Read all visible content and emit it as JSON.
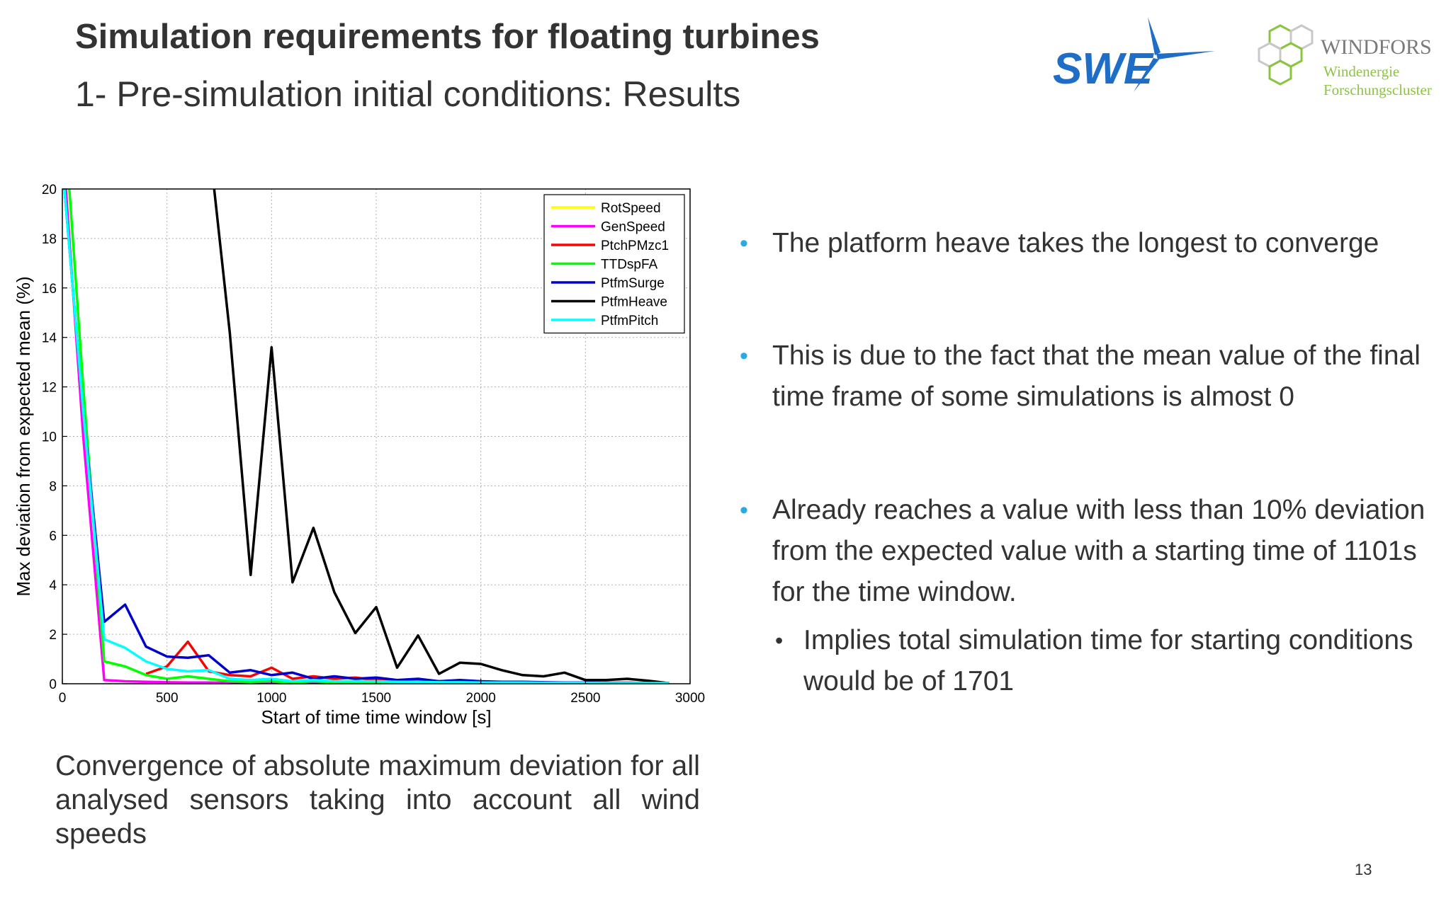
{
  "slide": {
    "title": "Simulation requirements for floating turbines",
    "subtitle": "1- Pre-simulation initial conditions: Results",
    "page_number": "13",
    "caption": "Convergence of absolute maximum deviation for all analysed sensors taking into account all wind speeds"
  },
  "logos": {
    "swe": {
      "text": "SWE",
      "color": "#1e6ec8"
    },
    "windfors": {
      "name": "WINDFORS",
      "line1": "Windenergie",
      "line2": "Forschungscluster",
      "color": "#8bc53f",
      "name_color": "#7a7a7a"
    }
  },
  "bullets": [
    {
      "text": "The platform heave takes the longest to converge"
    },
    {
      "text": "This is due to the fact that the mean value of the final time frame of some simulations is almost 0"
    },
    {
      "text": "Already reaches a value with less than 10% deviation from the expected value with a starting time of 1101s for the time window.",
      "sub": "Implies total simulation time for starting conditions would be of 1701"
    }
  ],
  "chart_data": {
    "type": "line",
    "xlabel": "Start of time time window [s]",
    "ylabel": "Max deviation from expected mean (%)",
    "xlim": [
      0,
      3000
    ],
    "ylim": [
      0,
      20
    ],
    "xticks": [
      0,
      500,
      1000,
      1500,
      2000,
      2500,
      3000
    ],
    "yticks": [
      0,
      2,
      4,
      6,
      8,
      10,
      12,
      14,
      16,
      18,
      20
    ],
    "grid": true,
    "legend_position": "top-right",
    "x": [
      0,
      100,
      200,
      300,
      400,
      500,
      600,
      700,
      800,
      900,
      1000,
      1100,
      1200,
      1300,
      1400,
      1500,
      1600,
      1700,
      1800,
      1900,
      2000,
      2100,
      2200,
      2300,
      2400,
      2500,
      2600,
      2700,
      2800,
      2900
    ],
    "series": [
      {
        "name": "RotSpeed",
        "color": "#ffff00",
        "values": [
          22,
          10,
          0.15,
          0.1,
          0.08,
          0.06,
          0.05,
          0.05,
          0.04,
          0.04,
          0.04,
          0.03,
          0.03,
          0.03,
          0.03,
          0.03,
          0.03,
          0.02,
          0.02,
          0.02,
          0.02,
          0.02,
          0.02,
          0.02,
          0.02,
          0.02,
          0.02,
          0.02,
          0.01,
          0.01
        ]
      },
      {
        "name": "GenSpeed",
        "color": "#ff00ff",
        "values": [
          22,
          10,
          0.15,
          0.1,
          0.08,
          0.06,
          0.05,
          0.05,
          0.04,
          0.04,
          0.04,
          0.03,
          0.03,
          0.03,
          0.03,
          0.03,
          0.03,
          0.02,
          0.02,
          0.02,
          0.02,
          0.02,
          0.02,
          0.02,
          0.02,
          0.02,
          0.02,
          0.02,
          0.01,
          0.01
        ]
      },
      {
        "name": "PtchPMzc1",
        "color": "#ff0000",
        "values": [
          null,
          null,
          null,
          null,
          0.4,
          0.7,
          1.7,
          0.5,
          0.35,
          0.3,
          0.65,
          0.2,
          0.3,
          0.2,
          0.25,
          0.15,
          0.15,
          0.1,
          0.1,
          0.08,
          0.08,
          0.06,
          0.05,
          0.05,
          0.05,
          0.04,
          0.04,
          0.04,
          0.03,
          0.03
        ]
      },
      {
        "name": "TTDspFA",
        "color": "#00ff00",
        "values": [
          24,
          12,
          0.9,
          0.7,
          0.35,
          0.2,
          0.3,
          0.2,
          0.1,
          0.08,
          0.1,
          0.05,
          0.1,
          0.05,
          0.05,
          0.05,
          0.04,
          0.04,
          0.03,
          0.03,
          0.03,
          0.03,
          0.03,
          0.02,
          0.02,
          0.02,
          0.02,
          0.02,
          0.02,
          0.02
        ]
      },
      {
        "name": "PtfmSurge",
        "color": "#0000cc",
        "values": [
          21,
          11,
          2.5,
          3.2,
          1.5,
          1.1,
          1.05,
          1.15,
          0.45,
          0.55,
          0.35,
          0.45,
          0.2,
          0.3,
          0.2,
          0.25,
          0.15,
          0.2,
          0.1,
          0.15,
          0.1,
          0.08,
          0.08,
          0.06,
          0.05,
          0.05,
          0.04,
          0.04,
          0.03,
          0.03
        ]
      },
      {
        "name": "PtfmHeave",
        "color": "#000000",
        "values": [
          null,
          null,
          null,
          null,
          null,
          null,
          null,
          22,
          14.2,
          4.4,
          13.6,
          4.1,
          6.3,
          3.7,
          2.05,
          3.1,
          0.65,
          1.95,
          0.4,
          0.85,
          0.8,
          0.55,
          0.35,
          0.3,
          0.45,
          0.15,
          0.15,
          0.2,
          0.12,
          0.02
        ]
      },
      {
        "name": "PtfmPitch",
        "color": "#00ffff",
        "values": [
          21,
          11,
          1.8,
          1.45,
          0.9,
          0.6,
          0.5,
          0.55,
          0.2,
          0.15,
          0.2,
          0.1,
          0.15,
          0.1,
          0.1,
          0.1,
          0.08,
          0.08,
          0.06,
          0.06,
          0.05,
          0.05,
          0.05,
          0.04,
          0.04,
          0.04,
          0.03,
          0.03,
          0.03,
          0.03
        ]
      }
    ]
  }
}
